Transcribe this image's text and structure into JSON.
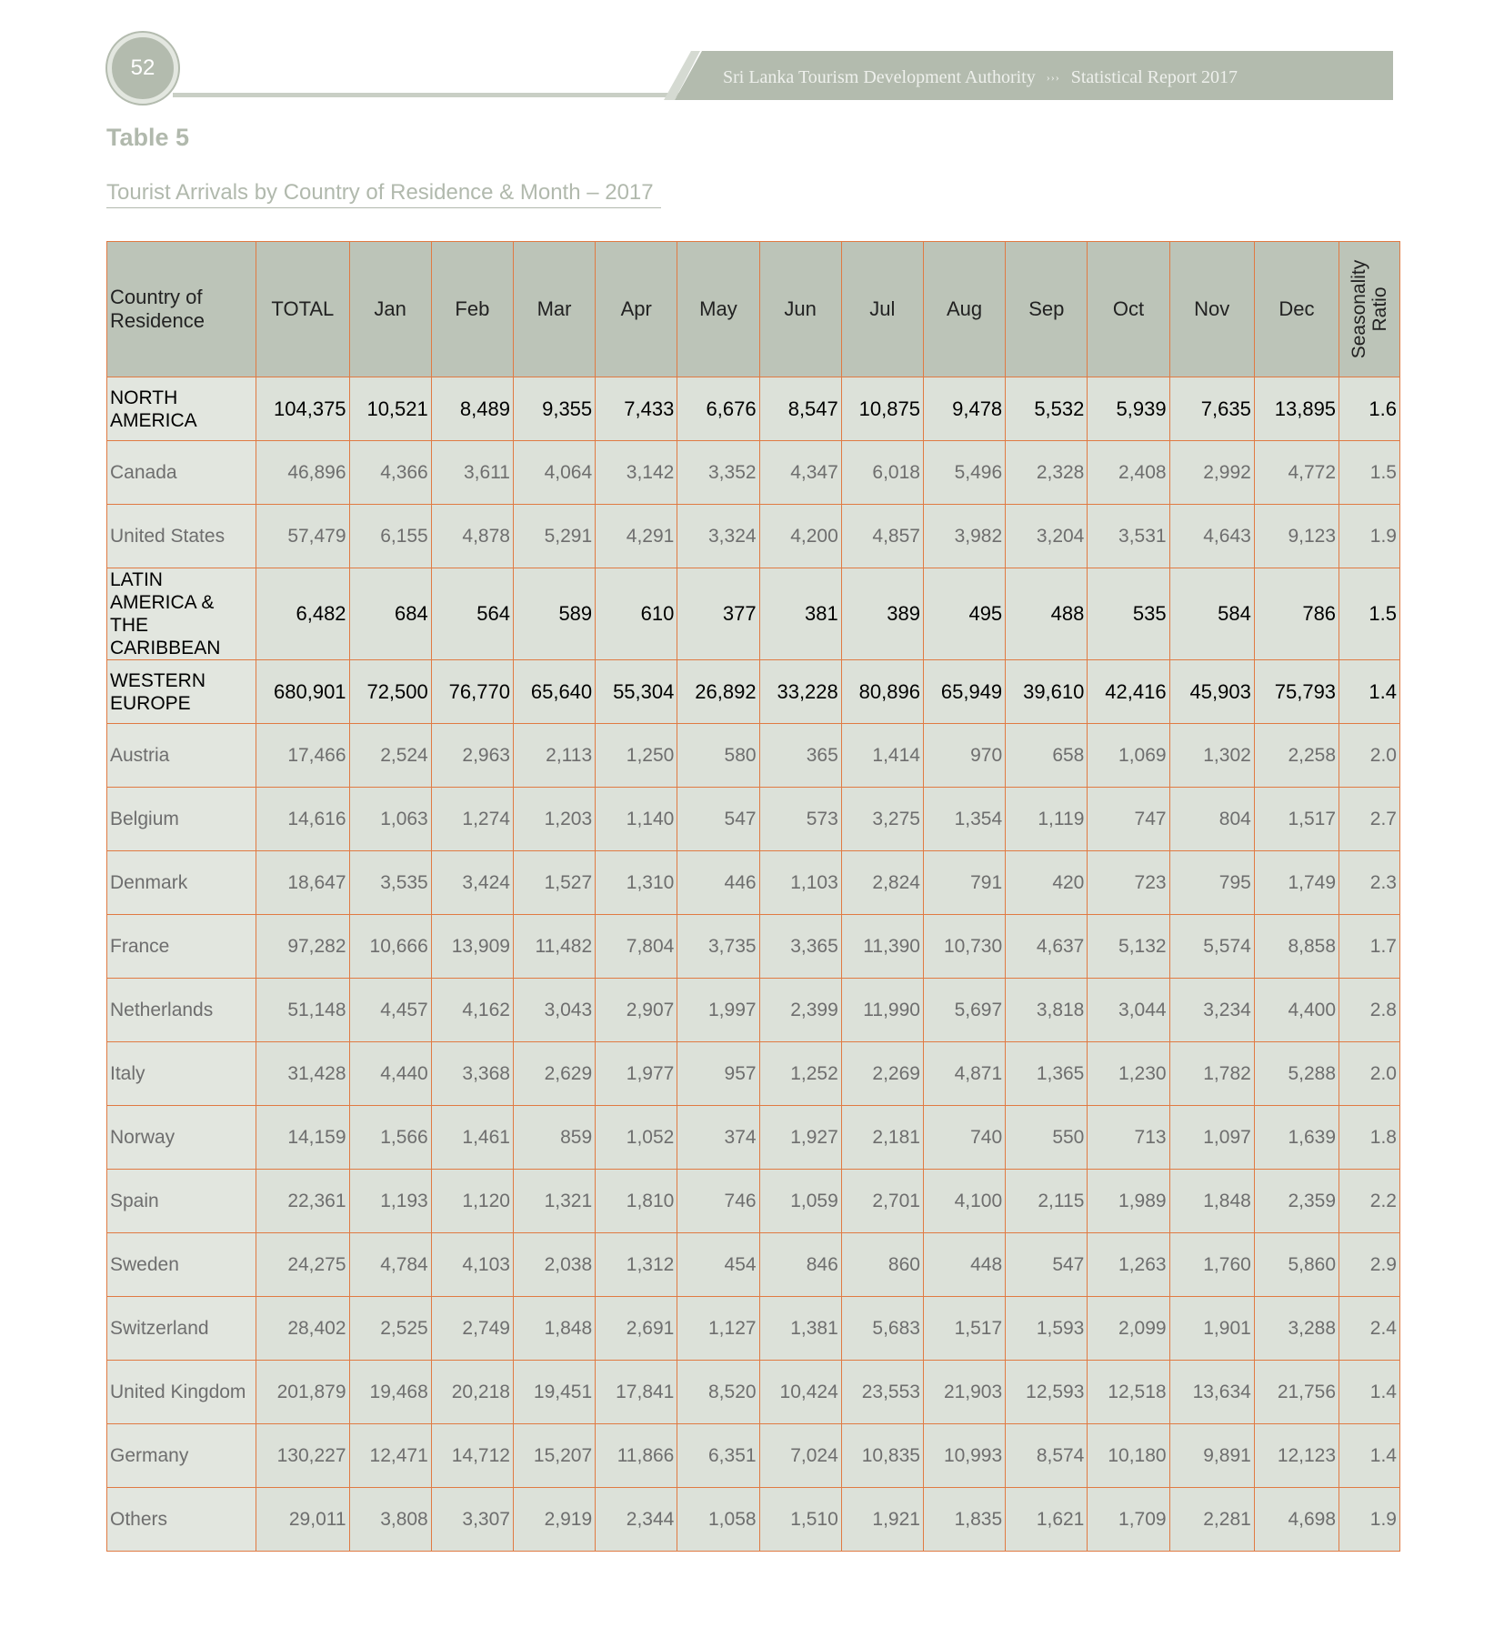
{
  "header": {
    "page_number": "52",
    "organization": "Sri Lanka Tourism Development Authority",
    "separator": "›››",
    "report": "Statistical Report 2017"
  },
  "table_label": "Table 5",
  "table_title": "Tourist Arrivals by Country of Residence & Month – 2017",
  "columns": {
    "country": "Country of Residence",
    "total": "TOTAL",
    "months": [
      "Jan",
      "Feb",
      "Mar",
      "Apr",
      "May",
      "Jun",
      "Jul",
      "Aug",
      "Sep",
      "Oct",
      "Nov",
      "Dec"
    ],
    "ratio": "Seasonality Ratio"
  },
  "rows": [
    {
      "region": true,
      "country": "NORTH AMERICA",
      "total": "104,375",
      "months": [
        "10,521",
        "8,489",
        "9,355",
        "7,433",
        "6,676",
        "8,547",
        "10,875",
        "9,478",
        "5,532",
        "5,939",
        "7,635",
        "13,895"
      ],
      "ratio": "1.6"
    },
    {
      "region": false,
      "country": "Canada",
      "total": "46,896",
      "months": [
        "4,366",
        "3,611",
        "4,064",
        "3,142",
        "3,352",
        "4,347",
        "6,018",
        "5,496",
        "2,328",
        "2,408",
        "2,992",
        "4,772"
      ],
      "ratio": "1.5"
    },
    {
      "region": false,
      "country": "United States",
      "total": "57,479",
      "months": [
        "6,155",
        "4,878",
        "5,291",
        "4,291",
        "3,324",
        "4,200",
        "4,857",
        "3,982",
        "3,204",
        "3,531",
        "4,643",
        "9,123"
      ],
      "ratio": "1.9"
    },
    {
      "region": true,
      "country": "LATIN AMERICA & THE CARIBBEAN",
      "total": "6,482",
      "months": [
        "684",
        "564",
        "589",
        "610",
        "377",
        "381",
        "389",
        "495",
        "488",
        "535",
        "584",
        "786"
      ],
      "ratio": "1.5"
    },
    {
      "region": true,
      "country": "WESTERN EUROPE",
      "total": "680,901",
      "months": [
        "72,500",
        "76,770",
        "65,640",
        "55,304",
        "26,892",
        "33,228",
        "80,896",
        "65,949",
        "39,610",
        "42,416",
        "45,903",
        "75,793"
      ],
      "ratio": "1.4"
    },
    {
      "region": false,
      "country": "Austria",
      "total": "17,466",
      "months": [
        "2,524",
        "2,963",
        "2,113",
        "1,250",
        "580",
        "365",
        "1,414",
        "970",
        "658",
        "1,069",
        "1,302",
        "2,258"
      ],
      "ratio": "2.0"
    },
    {
      "region": false,
      "country": "Belgium",
      "total": "14,616",
      "months": [
        "1,063",
        "1,274",
        "1,203",
        "1,140",
        "547",
        "573",
        "3,275",
        "1,354",
        "1,119",
        "747",
        "804",
        "1,517"
      ],
      "ratio": "2.7"
    },
    {
      "region": false,
      "country": "Denmark",
      "total": "18,647",
      "months": [
        "3,535",
        "3,424",
        "1,527",
        "1,310",
        "446",
        "1,103",
        "2,824",
        "791",
        "420",
        "723",
        "795",
        "1,749"
      ],
      "ratio": "2.3"
    },
    {
      "region": false,
      "country": "France",
      "total": "97,282",
      "months": [
        "10,666",
        "13,909",
        "11,482",
        "7,804",
        "3,735",
        "3,365",
        "11,390",
        "10,730",
        "4,637",
        "5,132",
        "5,574",
        "8,858"
      ],
      "ratio": "1.7"
    },
    {
      "region": false,
      "country": "Netherlands",
      "total": "51,148",
      "months": [
        "4,457",
        "4,162",
        "3,043",
        "2,907",
        "1,997",
        "2,399",
        "11,990",
        "5,697",
        "3,818",
        "3,044",
        "3,234",
        "4,400"
      ],
      "ratio": "2.8"
    },
    {
      "region": false,
      "country": "Italy",
      "total": "31,428",
      "months": [
        "4,440",
        "3,368",
        "2,629",
        "1,977",
        "957",
        "1,252",
        "2,269",
        "4,871",
        "1,365",
        "1,230",
        "1,782",
        "5,288"
      ],
      "ratio": "2.0"
    },
    {
      "region": false,
      "country": "Norway",
      "total": "14,159",
      "months": [
        "1,566",
        "1,461",
        "859",
        "1,052",
        "374",
        "1,927",
        "2,181",
        "740",
        "550",
        "713",
        "1,097",
        "1,639"
      ],
      "ratio": "1.8"
    },
    {
      "region": false,
      "country": "Spain",
      "total": "22,361",
      "months": [
        "1,193",
        "1,120",
        "1,321",
        "1,810",
        "746",
        "1,059",
        "2,701",
        "4,100",
        "2,115",
        "1,989",
        "1,848",
        "2,359"
      ],
      "ratio": "2.2"
    },
    {
      "region": false,
      "country": "Sweden",
      "total": "24,275",
      "months": [
        "4,784",
        "4,103",
        "2,038",
        "1,312",
        "454",
        "846",
        "860",
        "448",
        "547",
        "1,263",
        "1,760",
        "5,860"
      ],
      "ratio": "2.9"
    },
    {
      "region": false,
      "country": "Switzerland",
      "total": "28,402",
      "months": [
        "2,525",
        "2,749",
        "1,848",
        "2,691",
        "1,127",
        "1,381",
        "5,683",
        "1,517",
        "1,593",
        "2,099",
        "1,901",
        "3,288"
      ],
      "ratio": "2.4"
    },
    {
      "region": false,
      "country": "United Kingdom",
      "total": "201,879",
      "months": [
        "19,468",
        "20,218",
        "19,451",
        "17,841",
        "8,520",
        "10,424",
        "23,553",
        "21,903",
        "12,593",
        "12,518",
        "13,634",
        "21,756"
      ],
      "ratio": "1.4"
    },
    {
      "region": false,
      "country": "Germany",
      "total": "130,227",
      "months": [
        "12,471",
        "14,712",
        "15,207",
        "11,866",
        "6,351",
        "7,024",
        "10,835",
        "10,993",
        "8,574",
        "10,180",
        "9,891",
        "12,123"
      ],
      "ratio": "1.4"
    },
    {
      "region": false,
      "country": "Others",
      "total": "29,011",
      "months": [
        "3,808",
        "3,307",
        "2,919",
        "2,344",
        "1,058",
        "1,510",
        "1,921",
        "1,835",
        "1,621",
        "1,709",
        "2,281",
        "4,698"
      ],
      "ratio": "1.9"
    }
  ]
}
